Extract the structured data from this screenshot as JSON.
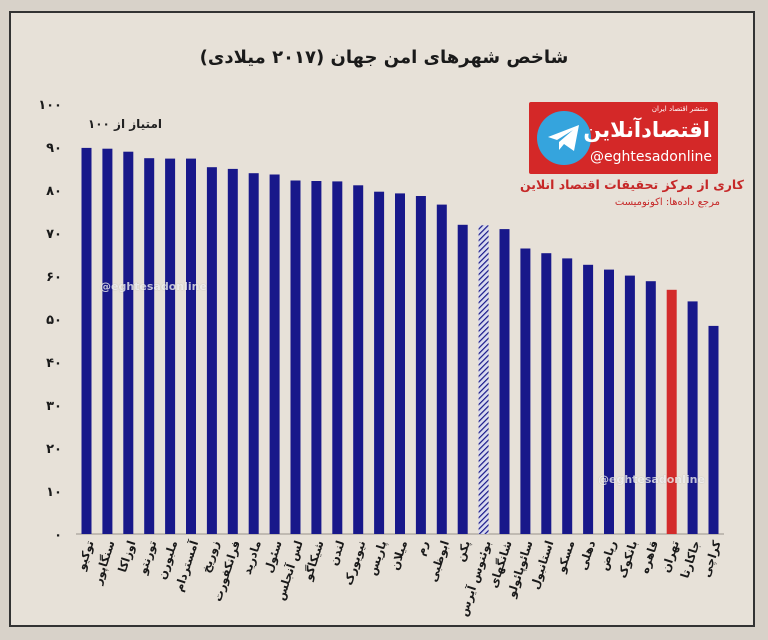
{
  "chart_data": {
    "type": "bar",
    "title": "شاخص شهرهای امن جهان (۲۰۱۷ میلادی)",
    "unit_note": "امتیاز از ۱۰۰",
    "ylim": [
      0,
      100
    ],
    "yticks": [
      0,
      10,
      20,
      30,
      40,
      50,
      60,
      70,
      80,
      90,
      100
    ],
    "ytick_labels": [
      "۰",
      "۱۰",
      "۲۰",
      "۳۰",
      "۴۰",
      "۵۰",
      "۶۰",
      "۷۰",
      "۸۰",
      "۹۰",
      "۱۰۰"
    ],
    "categories": [
      "توکیو",
      "سنگاپور",
      "اوزاکا",
      "تورنتو",
      "ملبورن",
      "آمستردام",
      "زوریخ",
      "فرانکفورت",
      "مادرید",
      "سئول",
      "لس آنجلس",
      "شیکاگو",
      "لندن",
      "نیویورک",
      "پاریس",
      "میلان",
      "رم",
      "ابوظبی",
      "پکن",
      "بوئنوس آیرس",
      "شانگهای",
      "سائوپائولو",
      "استانبول",
      "مسکو",
      "دهلی",
      "ریاض",
      "بانکوک",
      "قاهره",
      "تهران",
      "جاکارتا",
      "کراچی"
    ],
    "values": [
      89.8,
      89.6,
      88.9,
      87.4,
      87.3,
      87.3,
      85.3,
      84.9,
      83.9,
      83.6,
      82.2,
      82.1,
      82.0,
      81.1,
      79.6,
      79.2,
      78.6,
      76.6,
      71.9,
      71.8,
      70.9,
      66.4,
      65.3,
      64.1,
      62.6,
      61.5,
      60.1,
      58.8,
      56.8,
      54.1,
      48.4
    ],
    "highlights": {
      "19": "hatched",
      "28": "red"
    },
    "colors": {
      "bar": "#18188a",
      "highlight_red": "#d32b2b",
      "hatch": "#18188a"
    }
  },
  "branding": {
    "logo_small_text": "منتشر اقتصاد ایران",
    "logo_brand_text": "اقتصادآنلاین",
    "handle": "@eghtesadonline",
    "credit": "کاری از مرکز تحقیقات اقتصاد انلاین",
    "source": "مرجع داده‌ها: اکونومیست",
    "watermark": "@eghtesadonline",
    "accent_color": "#d42828",
    "telegram_color": "#35a4dd"
  }
}
